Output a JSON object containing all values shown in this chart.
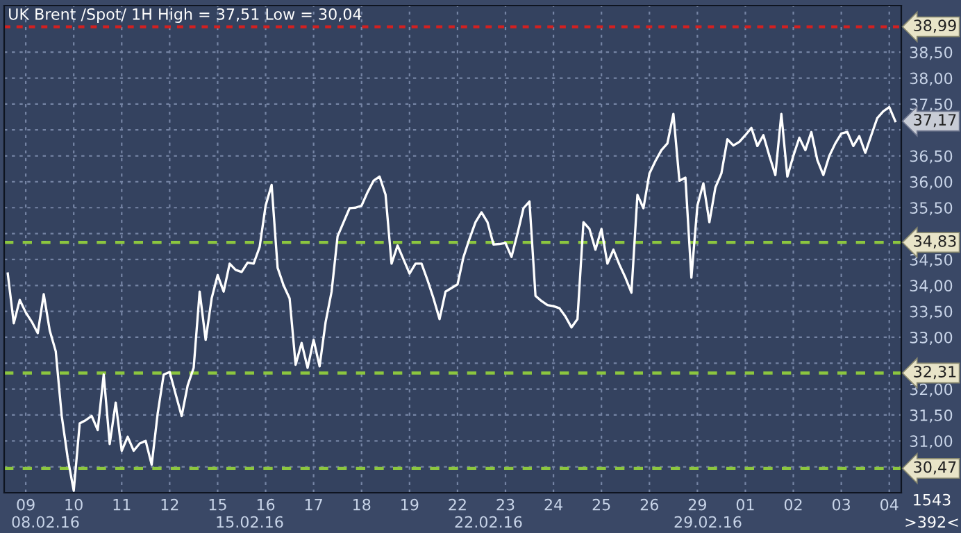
{
  "chart_data": {
    "type": "line",
    "title": "UK Brent /Spot/ 1H High = 37,51 Low = 30,04",
    "categories": [
      null,
      null,
      null,
      "09",
      null,
      null,
      null,
      null,
      null,
      null,
      null,
      "10",
      null,
      null,
      null,
      null,
      null,
      null,
      null,
      "11",
      null,
      null,
      null,
      null,
      null,
      null,
      null,
      "12",
      null,
      null,
      null,
      null,
      null,
      null,
      null,
      "15",
      null,
      null,
      null,
      null,
      null,
      null,
      null,
      "16",
      null,
      null,
      null,
      null,
      null,
      null,
      null,
      "17",
      null,
      null,
      null,
      null,
      null,
      null,
      null,
      "18",
      null,
      null,
      null,
      null,
      null,
      null,
      null,
      "19",
      null,
      null,
      null,
      null,
      null,
      null,
      null,
      "22",
      null,
      null,
      null,
      null,
      null,
      null,
      null,
      "23",
      null,
      null,
      null,
      null,
      null,
      null,
      null,
      "24",
      null,
      null,
      null,
      null,
      null,
      null,
      null,
      "25",
      null,
      null,
      null,
      null,
      null,
      null,
      null,
      "26",
      null,
      null,
      null,
      null,
      null,
      null,
      null,
      "29",
      null,
      null,
      null,
      null,
      null,
      null,
      null,
      "01",
      null,
      null,
      null,
      null,
      null,
      null,
      null,
      "02",
      null,
      null,
      null,
      null,
      null,
      null,
      null,
      "03",
      null,
      null,
      null,
      null,
      null,
      null,
      null,
      "04",
      null
    ],
    "series": [
      {
        "color": "#ffffff",
        "values": [
          34.23,
          33.27,
          33.72,
          33.48,
          33.3,
          33.08,
          33.83,
          33.13,
          32.73,
          31.48,
          30.67,
          30.04,
          31.34,
          31.4,
          31.48,
          31.21,
          32.28,
          30.94,
          31.74,
          30.81,
          31.08,
          30.81,
          30.95,
          31.0,
          30.54,
          31.53,
          32.28,
          32.33,
          31.9,
          31.48,
          32.07,
          32.41,
          33.88,
          32.95,
          33.75,
          34.2,
          33.88,
          34.42,
          34.3,
          34.26,
          34.44,
          34.42,
          34.74,
          35.54,
          35.94,
          34.34,
          34.0,
          33.75,
          32.47,
          32.89,
          32.41,
          32.95,
          32.44,
          33.29,
          33.88,
          34.95,
          35.22,
          35.49,
          35.5,
          35.54,
          35.8,
          36.02,
          36.1,
          35.75,
          34.42,
          34.77,
          34.5,
          34.23,
          34.42,
          34.42,
          34.1,
          33.75,
          33.35,
          33.88,
          33.95,
          34.02,
          34.55,
          34.9,
          35.22,
          35.41,
          35.22,
          34.79,
          34.8,
          34.82,
          34.55,
          35.0,
          35.49,
          35.62,
          33.8,
          33.7,
          33.62,
          33.6,
          33.56,
          33.4,
          33.19,
          33.35,
          35.22,
          35.09,
          34.69,
          35.09,
          34.42,
          34.69,
          34.4,
          34.15,
          33.86,
          35.75,
          35.49,
          36.16,
          36.4,
          36.61,
          36.74,
          37.31,
          36.02,
          36.08,
          34.15,
          35.54,
          35.97,
          35.22,
          35.89,
          36.16,
          36.82,
          36.7,
          36.77,
          36.9,
          37.04,
          36.69,
          36.9,
          36.5,
          36.13,
          37.31,
          36.1,
          36.5,
          36.85,
          36.61,
          36.96,
          36.42,
          36.13,
          36.5,
          36.74,
          36.93,
          36.96,
          36.69,
          36.88,
          36.56,
          36.9,
          37.23,
          37.36,
          37.44,
          37.17
        ]
      }
    ],
    "ylim": [
      30.0,
      39.4
    ],
    "yticks": [
      {
        "value": 30.5,
        "label": null
      },
      {
        "value": 31.0,
        "label": "31,00"
      },
      {
        "value": 31.5,
        "label": "31,50"
      },
      {
        "value": 32.0,
        "label": "32,00"
      },
      {
        "value": 32.5,
        "label": null
      },
      {
        "value": 33.0,
        "label": "33,00"
      },
      {
        "value": 33.5,
        "label": "33,50"
      },
      {
        "value": 34.0,
        "label": "34,00"
      },
      {
        "value": 34.5,
        "label": "34,50"
      },
      {
        "value": 35.0,
        "label": null
      },
      {
        "value": 35.5,
        "label": "35,50"
      },
      {
        "value": 36.0,
        "label": "36,00"
      },
      {
        "value": 36.5,
        "label": "36,50"
      },
      {
        "value": 37.0,
        "label": null
      },
      {
        "value": 37.5,
        "label": "37,50"
      },
      {
        "value": 38.0,
        "label": "38,00"
      },
      {
        "value": 38.5,
        "label": "38,50"
      }
    ],
    "ref_lines": [
      {
        "axis": "y",
        "value": 38.99,
        "label": "38,99",
        "color": "#d42020",
        "line_style": "dotted"
      },
      {
        "axis": "y",
        "value": 34.83,
        "label": "34,83",
        "color": "#8cc63f",
        "line_style": "dashed"
      },
      {
        "axis": "y",
        "value": 32.31,
        "label": "32,31",
        "color": "#8cc63f",
        "line_style": "dashed"
      },
      {
        "axis": "y",
        "value": 30.47,
        "label": "30,47",
        "color": "#8cc63f",
        "line_style": "dashed"
      }
    ],
    "value_labels": [
      null,
      null,
      null,
      null,
      null,
      null,
      null,
      null,
      null,
      null,
      null,
      null,
      null,
      null,
      null,
      null,
      null,
      null,
      null,
      null,
      null,
      null,
      null,
      null,
      null,
      null,
      null,
      null,
      null,
      null,
      null,
      null,
      null,
      null,
      null,
      null,
      null,
      null,
      null,
      null,
      null,
      null,
      null,
      null,
      null,
      null,
      null,
      null,
      null,
      null,
      null,
      null,
      null,
      null,
      null,
      null,
      null,
      null,
      null,
      null,
      null,
      null,
      null,
      null,
      null,
      null,
      null,
      null,
      null,
      null,
      null,
      null,
      null,
      null,
      null,
      null,
      null,
      null,
      null,
      null,
      null,
      null,
      null,
      null,
      null,
      null,
      null,
      null,
      null,
      null,
      null,
      null,
      null,
      null,
      null,
      null,
      null,
      null,
      null,
      null,
      null,
      null,
      null,
      null,
      null,
      null,
      null,
      null,
      null,
      null,
      null,
      null,
      null,
      null,
      null,
      null,
      null,
      null,
      null,
      null,
      null,
      null,
      null,
      null,
      null,
      null,
      null,
      null,
      null,
      null,
      null,
      null,
      null,
      null,
      null,
      null,
      null,
      null,
      null,
      null,
      null,
      null,
      null,
      null,
      null,
      null,
      null,
      null,
      "37,17"
    ],
    "annotations": [
      "08.02.16",
      "15.02.16",
      "22.02.16",
      "29.02.16",
      "1543",
      ">392<"
    ],
    "grid": true,
    "marker": "none",
    "line_style": "solid"
  }
}
